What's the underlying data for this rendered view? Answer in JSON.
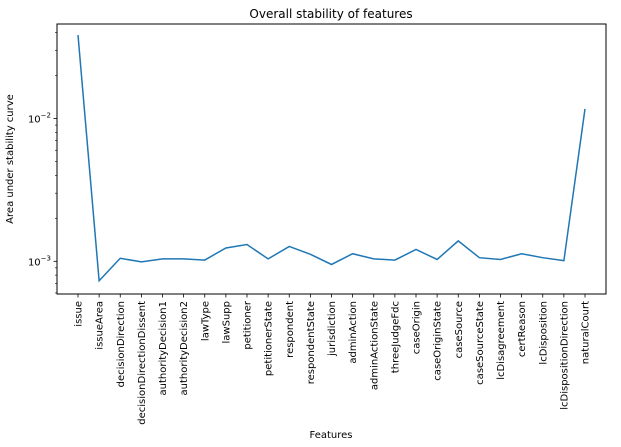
{
  "chart_data": {
    "type": "line",
    "title": "Overall stability of features",
    "xlabel": "Features",
    "ylabel": "Area under stability curve",
    "yscale": "log",
    "ylim": [
      0.00059,
      0.046
    ],
    "y_ticks": [
      {
        "value": 0.001,
        "label": "10",
        "exp": "−3"
      },
      {
        "value": 0.01,
        "label": "10",
        "exp": "−2"
      }
    ],
    "grid": false,
    "categories": [
      "issue",
      "issueArea",
      "decisionDirection",
      "decisionDirectionDissent",
      "authorityDecision1",
      "authorityDecision2",
      "lawType",
      "lawSupp",
      "petitioner",
      "petitionerState",
      "respondent",
      "respondentState",
      "jurisdiction",
      "adminAction",
      "adminActionState",
      "threeJudgeFdc",
      "caseOrigin",
      "caseOriginState",
      "caseSource",
      "caseSourceState",
      "lcDisagreement",
      "certReason",
      "lcDisposition",
      "lcDispositionDirection",
      "naturalCourt"
    ],
    "series": [
      {
        "color": "#1f77b4",
        "values": [
          0.0385,
          0.00073,
          0.00105,
          0.00099,
          0.00104,
          0.00104,
          0.00102,
          0.00124,
          0.00131,
          0.00104,
          0.00127,
          0.00112,
          0.00095,
          0.00113,
          0.00104,
          0.00102,
          0.00121,
          0.00103,
          0.00139,
          0.00106,
          0.00103,
          0.00113,
          0.00106,
          0.00101,
          0.0117
        ]
      }
    ]
  }
}
